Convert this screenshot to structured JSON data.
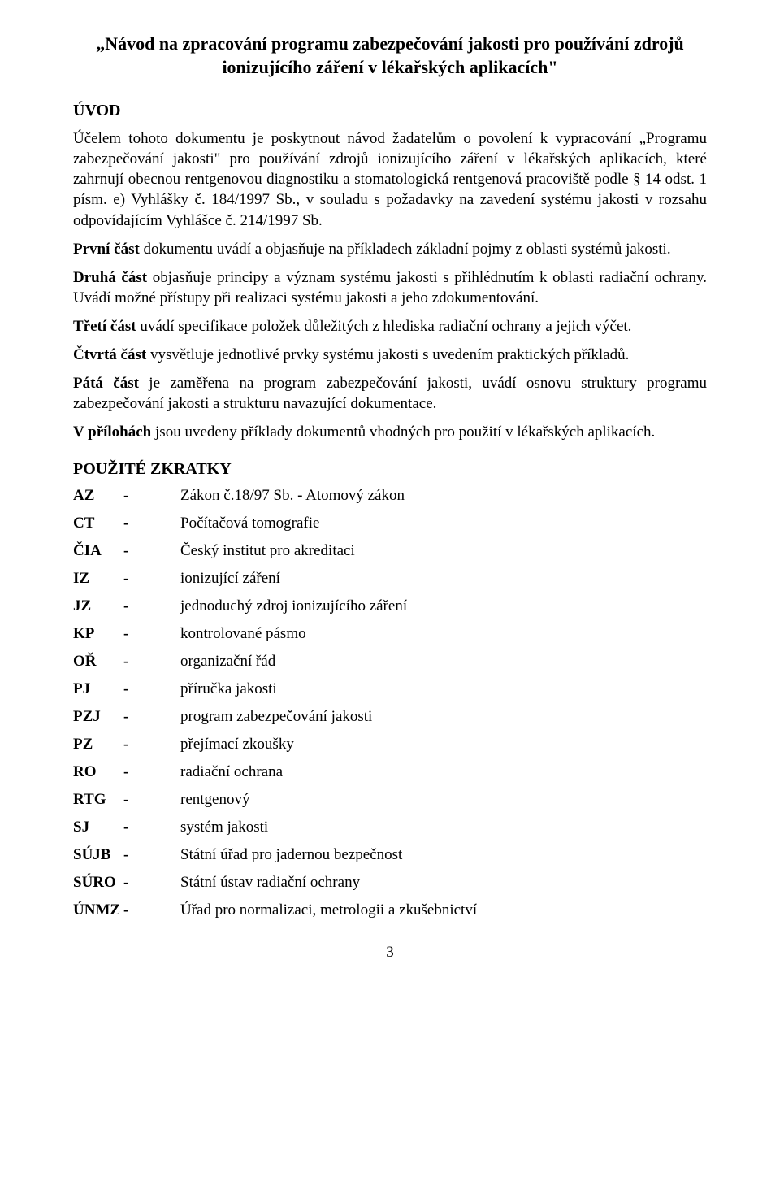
{
  "title": "„Návod na zpracování programu zabezpečování jakosti pro používání zdrojů ionizujícího záření v lékařských aplikacích\"",
  "uvod": {
    "heading": "ÚVOD",
    "p1": "Účelem tohoto dokumentu je poskytnout návod žadatelům o povolení k vypracování „Programu zabezpečování jakosti\" pro používání zdrojů ionizujícího záření v lékařských aplikacích, které zahrnují obecnou rentgenovou diagnostiku a stomatologická rentgenová pracoviště podle § 14 odst. 1 písm. e) Vyhlášky č. 184/1997 Sb., v souladu s požadavky na zavedení systému jakosti v rozsahu odpovídajícím Vyhlášce č. 214/1997 Sb.",
    "p2a": "První část",
    "p2b": " dokumentu uvádí a objasňuje na příkladech základní pojmy z oblasti systémů jakosti.",
    "p3a": "Druhá část",
    "p3b": " objasňuje principy a význam systému jakosti s přihlédnutím k oblasti radiační ochrany. Uvádí možné přístupy při realizaci systému jakosti a jeho zdokumentování.",
    "p4a": "Třetí část",
    "p4b": " uvádí specifikace položek důležitých z hlediska radiační ochrany a jejich výčet.",
    "p5a": "Čtvrtá část",
    "p5b": " vysvětluje jednotlivé prvky systému jakosti s uvedením praktických příkladů.",
    "p6a": "Pátá část",
    "p6b": " je zaměřena na program zabezpečování jakosti, uvádí osnovu struktury programu zabezpečování jakosti a strukturu navazující dokumentace.",
    "p7a": "V přílohách",
    "p7b": " jsou uvedeny příklady dokumentů vhodných pro použití v lékařských aplikacích."
  },
  "zkratky": {
    "heading": "POUŽITÉ ZKRATKY",
    "rows": [
      {
        "key": "AZ",
        "dash": "-",
        "val": "Zákon č.18/97 Sb. - Atomový zákon"
      },
      {
        "key": "CT",
        "dash": "-",
        "val": "Počítačová tomografie"
      },
      {
        "key": "ČIA",
        "dash": "-",
        "val": "Český institut pro akreditaci"
      },
      {
        "key": "IZ",
        "dash": "-",
        "val": "ionizující záření"
      },
      {
        "key": "JZ",
        "dash": "-",
        "val": "jednoduchý zdroj ionizujícího záření"
      },
      {
        "key": "KP",
        "dash": "-",
        "val": "kontrolované pásmo"
      },
      {
        "key": "OŘ",
        "dash": "-",
        "val": "organizační řád"
      },
      {
        "key": "PJ",
        "dash": "-",
        "val": "příručka jakosti"
      },
      {
        "key": "PZJ",
        "dash": "-",
        "val": "program zabezpečování jakosti"
      },
      {
        "key": "PZ",
        "dash": "-",
        "val": "přejímací zkoušky"
      },
      {
        "key": "RO",
        "dash": "-",
        "val": "radiační ochrana"
      },
      {
        "key": "RTG",
        "dash": "-",
        "val": "rentgenový"
      },
      {
        "key": "SJ",
        "dash": "-",
        "val": "systém jakosti"
      },
      {
        "key": "SÚJB",
        "dash": "-",
        "val": "Státní úřad pro jadernou bezpečnost"
      },
      {
        "key": "SÚRO",
        "dash": "-",
        "val": "Státní ústav radiační ochrany"
      },
      {
        "key": "ÚNMZ",
        "dash": "-",
        "val": "Úřad pro normalizaci, metrologii a zkušebnictví"
      }
    ]
  },
  "page_number": "3"
}
